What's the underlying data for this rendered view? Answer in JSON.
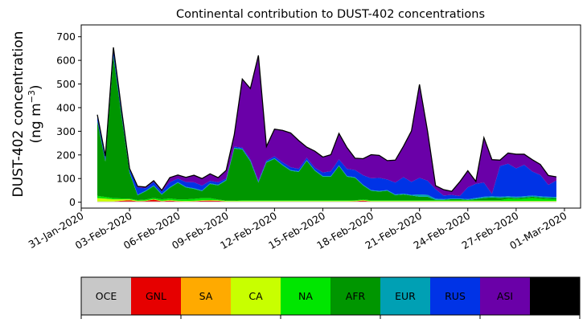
{
  "chart_data": {
    "type": "area",
    "stacked": true,
    "title": "Continental contribution to DUST-402 concentrations",
    "ylabel_line1": "DUST-402 concentration",
    "ylabel_line2_main": "(ng m",
    "ylabel_line2_sup": "−3",
    "ylabel_line2_end": ")",
    "xlabel": "",
    "ylim": [
      -25,
      750
    ],
    "yticks": [
      0,
      100,
      200,
      300,
      400,
      500,
      600,
      700
    ],
    "xlim": [
      "2020-01-31",
      "2020-03-02"
    ],
    "xticks": [
      "31-Jan-2020",
      "03-Feb-2020",
      "06-Feb-2020",
      "09-Feb-2020",
      "12-Feb-2020",
      "15-Feb-2020",
      "18-Feb-2020",
      "21-Feb-2020",
      "24-Feb-2020",
      "27-Feb-2020",
      "01-Mar-2020"
    ],
    "grid": false,
    "legend_position": "bottom",
    "x": [
      "2020-02-01",
      "2020-02-01T12:00",
      "2020-02-02",
      "2020-02-02T12:00",
      "2020-02-03",
      "2020-02-03T12:00",
      "2020-02-04",
      "2020-02-04T12:00",
      "2020-02-05",
      "2020-02-05T12:00",
      "2020-02-06",
      "2020-02-06T12:00",
      "2020-02-07",
      "2020-02-07T12:00",
      "2020-02-08",
      "2020-02-08T12:00",
      "2020-02-09",
      "2020-02-09T12:00",
      "2020-02-10",
      "2020-02-10T12:00",
      "2020-02-11",
      "2020-02-11T12:00",
      "2020-02-12",
      "2020-02-12T12:00",
      "2020-02-13",
      "2020-02-13T12:00",
      "2020-02-14",
      "2020-02-14T12:00",
      "2020-02-15",
      "2020-02-15T12:00",
      "2020-02-16",
      "2020-02-16T12:00",
      "2020-02-17",
      "2020-02-17T12:00",
      "2020-02-18",
      "2020-02-18T12:00",
      "2020-02-19",
      "2020-02-19T12:00",
      "2020-02-20",
      "2020-02-20T12:00",
      "2020-02-21",
      "2020-02-21T12:00",
      "2020-02-22",
      "2020-02-22T12:00",
      "2020-02-23",
      "2020-02-23T12:00",
      "2020-02-24",
      "2020-02-24T12:00",
      "2020-02-25",
      "2020-02-25T12:00",
      "2020-02-26",
      "2020-02-26T12:00",
      "2020-02-27",
      "2020-02-27T12:00",
      "2020-02-28",
      "2020-02-28T12:00",
      "2020-02-29",
      "2020-02-29T12:00"
    ],
    "series": [
      {
        "name": "OCE",
        "color": "#c8c8c8",
        "values": [
          3,
          3,
          3,
          3,
          3,
          3,
          3,
          3,
          3,
          3,
          3,
          3,
          3,
          3,
          3,
          3,
          3,
          3,
          3,
          3,
          3,
          3,
          3,
          3,
          3,
          3,
          3,
          3,
          3,
          3,
          3,
          3,
          3,
          3,
          3,
          3,
          3,
          3,
          3,
          3,
          3,
          3,
          3,
          3,
          3,
          3,
          3,
          3,
          3,
          3,
          3,
          3,
          3,
          3,
          3,
          3,
          3,
          3
        ]
      },
      {
        "name": "GNL",
        "color": "#e60000",
        "values": [
          0,
          0,
          0,
          3,
          5,
          1,
          2,
          8,
          1,
          4,
          1,
          0,
          1,
          3,
          4,
          3,
          0,
          0,
          0,
          0,
          0,
          0,
          0,
          0,
          0,
          0,
          0,
          0,
          0,
          0,
          0,
          0,
          1,
          4,
          0,
          0,
          0,
          0,
          0,
          0,
          0,
          0,
          0,
          0,
          0,
          0,
          0,
          0,
          0,
          0,
          0,
          0,
          0,
          0,
          0,
          0,
          0,
          0
        ]
      },
      {
        "name": "SA",
        "color": "#ffaa00",
        "values": [
          0,
          0,
          0,
          0,
          0,
          0,
          0,
          0,
          0,
          0,
          0,
          0,
          0,
          0,
          0,
          0,
          0,
          0,
          0,
          0,
          0,
          0,
          0,
          0,
          0,
          0,
          0,
          0,
          0,
          0,
          0,
          0,
          0,
          0,
          0,
          0,
          0,
          0,
          0,
          0,
          0,
          0,
          0,
          0,
          0,
          0,
          0,
          0,
          0,
          0,
          0,
          0,
          0,
          0,
          0,
          0,
          0,
          0
        ]
      },
      {
        "name": "CA",
        "color": "#c8ff00",
        "values": [
          14,
          12,
          9,
          6,
          4,
          2,
          2,
          2,
          2,
          2,
          2,
          2,
          2,
          2,
          2,
          2,
          2,
          2,
          2,
          2,
          2,
          2,
          2,
          2,
          2,
          2,
          2,
          2,
          2,
          2,
          2,
          2,
          2,
          2,
          2,
          2,
          2,
          2,
          2,
          2,
          2,
          2,
          2,
          2,
          2,
          2,
          2,
          2,
          2,
          2,
          2,
          2,
          2,
          2,
          2,
          2,
          2,
          2
        ]
      },
      {
        "name": "NA",
        "color": "#00e600",
        "values": [
          10,
          7,
          5,
          4,
          3,
          3,
          4,
          5,
          6,
          7,
          6,
          7,
          8,
          9,
          8,
          3,
          2,
          2,
          3,
          3,
          3,
          3,
          3,
          3,
          3,
          3,
          3,
          3,
          3,
          3,
          3,
          3,
          2,
          2,
          3,
          3,
          3,
          3,
          3,
          3,
          3,
          3,
          3,
          3,
          3,
          3,
          3,
          3,
          3,
          3,
          3,
          10,
          8,
          10,
          13,
          10,
          8,
          7
        ]
      },
      {
        "name": "AFR",
        "color": "#009600",
        "values": [
          315,
          150,
          600,
          350,
          110,
          20,
          35,
          50,
          20,
          45,
          70,
          50,
          42,
          30,
          60,
          60,
          85,
          220,
          215,
          165,
          75,
          160,
          175,
          148,
          125,
          120,
          167,
          125,
          100,
          100,
          145,
          100,
          95,
          60,
          40,
          37,
          40,
          22,
          25,
          20,
          15,
          15,
          2,
          2,
          5,
          5,
          2,
          5,
          10,
          12,
          10,
          5,
          5,
          5,
          5,
          5,
          5,
          5
        ]
      },
      {
        "name": "EUR",
        "color": "#00a0b4",
        "values": [
          3,
          3,
          3,
          3,
          3,
          3,
          3,
          3,
          3,
          3,
          3,
          3,
          3,
          3,
          3,
          3,
          3,
          3,
          3,
          3,
          3,
          3,
          3,
          3,
          3,
          3,
          3,
          3,
          3,
          3,
          3,
          3,
          3,
          3,
          3,
          3,
          3,
          3,
          3,
          3,
          10,
          8,
          5,
          3,
          3,
          3,
          3,
          5,
          5,
          5,
          5,
          5,
          5,
          5,
          5,
          5,
          5,
          5
        ]
      },
      {
        "name": "RUS",
        "color": "#0033e6",
        "values": [
          20,
          15,
          30,
          20,
          10,
          30,
          10,
          15,
          10,
          20,
          15,
          20,
          25,
          20,
          10,
          10,
          5,
          5,
          5,
          5,
          5,
          5,
          8,
          10,
          12,
          10,
          10,
          10,
          15,
          20,
          25,
          30,
          30,
          40,
          50,
          55,
          45,
          50,
          70,
          55,
          70,
          60,
          40,
          15,
          15,
          10,
          50,
          60,
          60,
          10,
          130,
          138,
          120,
          133,
          102,
          90,
          50,
          70
        ]
      },
      {
        "name": "ASI",
        "color": "#6a00a8",
        "values": [
          5,
          5,
          5,
          5,
          5,
          5,
          5,
          5,
          5,
          20,
          15,
          20,
          30,
          30,
          30,
          20,
          35,
          50,
          290,
          300,
          530,
          60,
          115,
          135,
          145,
          120,
          45,
          70,
          65,
          70,
          110,
          90,
          50,
          70,
          100,
          95,
          80,
          95,
          130,
          215,
          395,
          210,
          15,
          25,
          15,
          60,
          70,
          10,
          190,
          145,
          25,
          45,
          60,
          45,
          50,
          45,
          40,
          15
        ]
      },
      {
        "name": "AUS",
        "color": "#000000",
        "values": [
          0,
          0,
          0,
          0,
          0,
          0,
          0,
          0,
          0,
          0,
          0,
          0,
          0,
          0,
          0,
          0,
          0,
          0,
          0,
          0,
          0,
          0,
          0,
          0,
          0,
          0,
          0,
          0,
          0,
          0,
          0,
          0,
          0,
          0,
          0,
          0,
          0,
          0,
          0,
          0,
          0,
          0,
          0,
          0,
          0,
          0,
          0,
          0,
          0,
          0,
          0,
          0,
          0,
          0,
          0,
          0,
          0,
          0
        ]
      }
    ]
  }
}
